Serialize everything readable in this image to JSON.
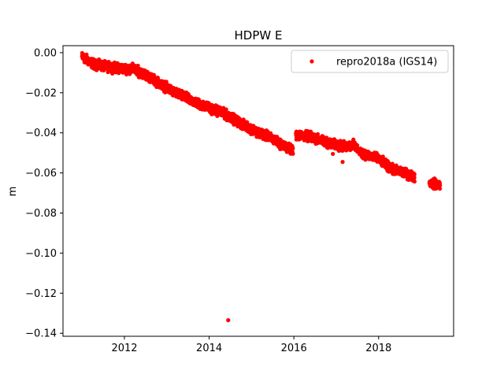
{
  "chart_data": {
    "type": "scatter",
    "title": "HDPW E",
    "xlabel": "",
    "ylabel": "m",
    "xlim": [
      2010.55,
      2019.77
    ],
    "ylim": [
      -0.1415,
      0.0035
    ],
    "x_ticks": [
      2012,
      2014,
      2016,
      2018
    ],
    "y_ticks": [
      0.0,
      -0.02,
      -0.04,
      -0.06,
      -0.08,
      -0.1,
      -0.12,
      -0.14
    ],
    "y_tick_labels": [
      "0.00",
      "−0.02",
      "−0.04",
      "−0.06",
      "−0.08",
      "−0.10",
      "−0.12",
      "−0.14"
    ],
    "grid": false,
    "legend_position": "top-right",
    "series": [
      {
        "name": "repro2018a (IGS14)",
        "color": "#ff0000",
        "marker": "circle",
        "trend": [
          [
            2011.0,
            -0.002
          ],
          [
            2011.3,
            -0.006
          ],
          [
            2011.6,
            -0.007
          ],
          [
            2012.0,
            -0.008
          ],
          [
            2012.2,
            -0.008
          ],
          [
            2012.5,
            -0.011
          ],
          [
            2012.8,
            -0.015
          ],
          [
            2013.2,
            -0.02
          ],
          [
            2013.5,
            -0.023
          ],
          [
            2013.8,
            -0.026
          ],
          [
            2014.2,
            -0.029
          ],
          [
            2014.5,
            -0.032
          ],
          [
            2014.8,
            -0.036
          ],
          [
            2015.2,
            -0.04
          ],
          [
            2015.5,
            -0.043
          ],
          [
            2015.8,
            -0.047
          ],
          [
            2016.0,
            -0.049
          ],
          [
            2016.05,
            -0.041
          ],
          [
            2016.4,
            -0.042
          ],
          [
            2016.8,
            -0.045
          ],
          [
            2017.2,
            -0.047
          ],
          [
            2017.4,
            -0.046
          ],
          [
            2017.6,
            -0.05
          ],
          [
            2018.0,
            -0.053
          ],
          [
            2018.3,
            -0.058
          ],
          [
            2018.6,
            -0.06
          ],
          [
            2018.85,
            -0.062
          ],
          [
            2019.2,
            -0.065
          ],
          [
            2019.45,
            -0.066
          ]
        ],
        "segments": [
          [
            2011.0,
            2015.98
          ],
          [
            2016.05,
            2017.5
          ],
          [
            2017.55,
            2018.85
          ],
          [
            2019.2,
            2019.45
          ]
        ],
        "outliers": [
          [
            2014.45,
            -0.1335
          ],
          [
            2017.15,
            -0.0545
          ],
          [
            2016.92,
            -0.0505
          ]
        ]
      }
    ]
  }
}
